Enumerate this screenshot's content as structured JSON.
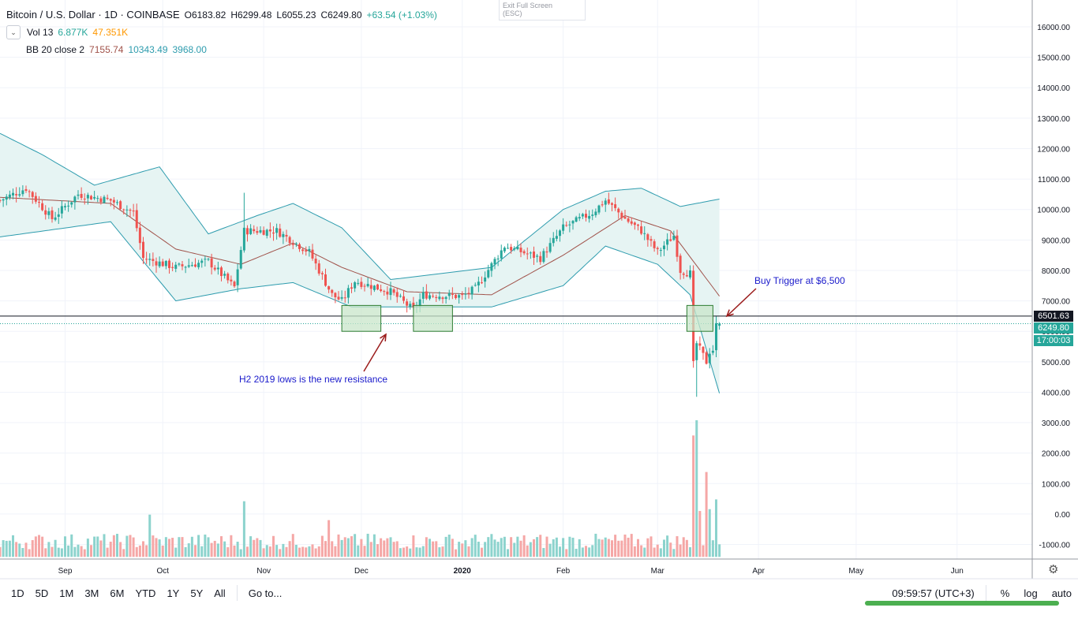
{
  "legend": {
    "symbol": "Bitcoin / U.S. Dollar · 1D · COINBASE",
    "open": "O6183.82",
    "high": "H6299.48",
    "low": "L6055.23",
    "close": "C6249.80",
    "change": "+63.54 (+1.03%)",
    "vol_label": "Vol 13",
    "vol_value": "6.877K",
    "vol_ma": "47.351K",
    "bb_label": "BB 20 close 2",
    "bb_basis": "7155.74",
    "bb_upper": "10343.49",
    "bb_lower": "3968.00"
  },
  "exit_fullscreen": {
    "line1": "Exit Full Screen",
    "line2": "(ESC)"
  },
  "annotations": {
    "buy_trigger": "Buy Trigger at $6,500",
    "resistance": "H2 2019 lows is the new resistance"
  },
  "price_tags": {
    "line_price": "6501.63",
    "last_price": "6249.80",
    "countdown": "17:00:03"
  },
  "timeframes": [
    "1D",
    "5D",
    "1M",
    "3M",
    "6M",
    "YTD",
    "1Y",
    "5Y",
    "All"
  ],
  "goto_label": "Go to...",
  "clock": "09:59:57 (UTC+3)",
  "scale_buttons": {
    "percent": "%",
    "log": "log",
    "auto": "auto"
  },
  "colors": {
    "up": "#26a69a",
    "down": "#ef5350",
    "bb_band": "#2e9cae",
    "bb_basis": "#a0524a",
    "bb_fill": "#e6f4f3",
    "vol_up": "#8cd3cd",
    "vol_down": "#f5a7a6",
    "annotation": "#1a1acb",
    "arrow": "#9b1c1c",
    "box_fill": "#c8e6c9",
    "box_stroke": "#2e7d32"
  },
  "chart_data": [
    {
      "type": "candlestick",
      "title": "Bitcoin / U.S. Dollar · 1D · COINBASE",
      "x_ticks": [
        "Sep",
        "Oct",
        "Nov",
        "Dec",
        "2020",
        "Feb",
        "Mar",
        "Apr",
        "May",
        "Jun"
      ],
      "y_ticks": [
        "16000.00",
        "15000.00",
        "14000.00",
        "13000.00",
        "12000.00",
        "11000.00",
        "10000.00",
        "9000.00",
        "8000.00",
        "7000.00",
        "6000.00",
        "5000.00",
        "4000.00",
        "3000.00",
        "2000.00",
        "1000.00",
        "0.00",
        "-1000.00"
      ],
      "ylim": [
        -1400,
        16800
      ],
      "horizontal_line": 6501.63,
      "series": [
        {
          "name": "BTCUSD",
          "close_anchors": [
            [
              "2019-08-12",
              10300
            ],
            [
              "2019-08-20",
              10700
            ],
            [
              "2019-08-28",
              9700
            ],
            [
              "2019-09-05",
              10500
            ],
            [
              "2019-09-15",
              10300
            ],
            [
              "2019-09-22",
              9900
            ],
            [
              "2019-09-25",
              8400
            ],
            [
              "2019-10-05",
              8100
            ],
            [
              "2019-10-15",
              8300
            ],
            [
              "2019-10-23",
              7450
            ],
            [
              "2019-10-26",
              9300
            ],
            [
              "2019-11-05",
              9300
            ],
            [
              "2019-11-15",
              8600
            ],
            [
              "2019-11-22",
              7200
            ],
            [
              "2019-11-25",
              7000
            ],
            [
              "2019-11-29",
              7650
            ],
            [
              "2019-12-10",
              7300
            ],
            [
              "2019-12-17",
              6700
            ],
            [
              "2019-12-20",
              7200
            ],
            [
              "2020-01-01",
              7150
            ],
            [
              "2020-01-05",
              7400
            ],
            [
              "2020-01-14",
              8800
            ],
            [
              "2020-01-25",
              8400
            ],
            [
              "2020-02-01",
              9400
            ],
            [
              "2020-02-10",
              9900
            ],
            [
              "2020-02-14",
              10300
            ],
            [
              "2020-02-20",
              9700
            ],
            [
              "2020-02-25",
              9300
            ],
            [
              "2020-03-01",
              8600
            ],
            [
              "2020-03-06",
              9150
            ],
            [
              "2020-03-08",
              8000
            ],
            [
              "2020-03-11",
              7900
            ],
            [
              "2020-03-12",
              4900
            ],
            [
              "2020-03-13",
              5600
            ],
            [
              "2020-03-16",
              5000
            ],
            [
              "2020-03-17",
              5350
            ],
            [
              "2020-03-18",
              5400
            ],
            [
              "2020-03-19",
              6186
            ],
            [
              "2020-03-20",
              6250
            ]
          ],
          "last": {
            "open": 6183.82,
            "high": 6299.48,
            "low": 6055.23,
            "close": 6249.8
          }
        },
        {
          "name": "BB 20 close 2",
          "basis_anchors": [
            [
              "2019-08-12",
              10400
            ],
            [
              "2019-09-15",
              10200
            ],
            [
              "2019-10-05",
              8700
            ],
            [
              "2019-10-25",
              8200
            ],
            [
              "2019-11-10",
              8900
            ],
            [
              "2019-11-25",
              8100
            ],
            [
              "2019-12-15",
              7300
            ],
            [
              "2020-01-10",
              7200
            ],
            [
              "2020-02-01",
              8500
            ],
            [
              "2020-02-20",
              9800
            ],
            [
              "2020-03-05",
              9300
            ],
            [
              "2020-03-20",
              7155.74
            ]
          ],
          "upper_anchors": [
            [
              "2019-08-12",
              12500
            ],
            [
              "2019-08-25",
              11800
            ],
            [
              "2019-09-10",
              10800
            ],
            [
              "2019-09-30",
              11400
            ],
            [
              "2019-10-15",
              9200
            ],
            [
              "2019-10-30",
              9800
            ],
            [
              "2019-11-10",
              10200
            ],
            [
              "2019-11-25",
              9400
            ],
            [
              "2019-12-10",
              7700
            ],
            [
              "2020-01-10",
              8100
            ],
            [
              "2020-02-01",
              10000
            ],
            [
              "2020-02-14",
              10600
            ],
            [
              "2020-02-25",
              10700
            ],
            [
              "2020-03-08",
              10100
            ],
            [
              "2020-03-20",
              10343.49
            ]
          ],
          "lower_anchors": [
            [
              "2019-08-12",
              9100
            ],
            [
              "2019-09-15",
              9600
            ],
            [
              "2019-10-05",
              7000
            ],
            [
              "2019-10-25",
              7400
            ],
            [
              "2019-11-10",
              7600
            ],
            [
              "2019-11-28",
              6800
            ],
            [
              "2019-12-20",
              6800
            ],
            [
              "2020-01-10",
              6800
            ],
            [
              "2020-02-01",
              7500
            ],
            [
              "2020-02-14",
              8800
            ],
            [
              "2020-03-01",
              8200
            ],
            [
              "2020-03-11",
              7200
            ],
            [
              "2020-03-20",
              3968.0
            ]
          ]
        },
        {
          "name": "Vol 13",
          "baseline": -1200,
          "spikes": [
            [
              "2019-09-27",
              -20
            ],
            [
              "2019-10-26",
              420
            ],
            [
              "2019-11-21",
              -200
            ],
            [
              "2020-03-12",
              2580
            ],
            [
              "2020-03-13",
              3080
            ],
            [
              "2020-03-14",
              100
            ],
            [
              "2020-03-16",
              1380
            ],
            [
              "2020-03-17",
              160
            ],
            [
              "2020-03-19",
              480
            ]
          ]
        }
      ],
      "annotations": [
        {
          "text": "Buy Trigger at $6,500"
        },
        {
          "text": "H2 2019 lows is the new resistance"
        }
      ]
    }
  ]
}
